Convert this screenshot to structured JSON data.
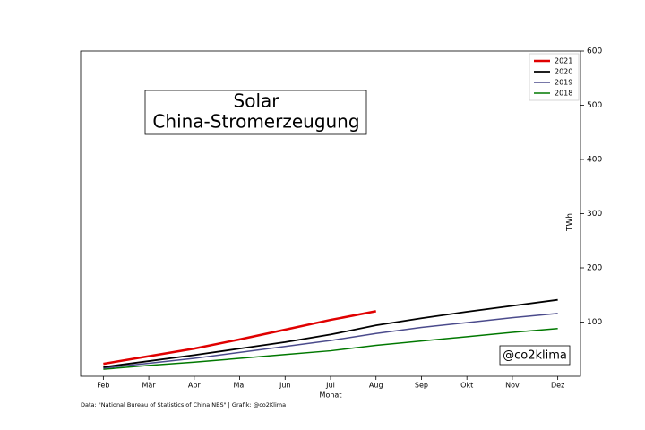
{
  "chart_data": {
    "type": "line",
    "title": "Solar",
    "subtitle": "China-Stromerzeugung",
    "xlabel": "Monat",
    "ylabel": "TWh",
    "annotation": "@co2klima",
    "source": "Data: \"National Bureau of Statistics of China NBS\" | Grafik: @co2Klima",
    "categories": [
      "Feb",
      "Mär",
      "Apr",
      "Mai",
      "Jun",
      "Jul",
      "Aug",
      "Sep",
      "Okt",
      "Nov",
      "Dez"
    ],
    "series": [
      {
        "name": "2021",
        "color": "#e00000",
        "linewidth": 2.5,
        "values": [
          23,
          37,
          51,
          68,
          86,
          104,
          120,
          null,
          null,
          null,
          null
        ]
      },
      {
        "name": "2020",
        "color": "#000000",
        "linewidth": 1.8,
        "values": [
          17,
          28,
          39,
          51,
          63,
          77,
          94,
          107,
          119,
          130,
          141
        ]
      },
      {
        "name": "2019",
        "color": "#4b4b8c",
        "linewidth": 1.5,
        "values": [
          15,
          24,
          33,
          44,
          55,
          66,
          79,
          90,
          99,
          108,
          116
        ]
      },
      {
        "name": "2018",
        "color": "#007800",
        "linewidth": 1.5,
        "values": [
          13,
          20,
          26,
          33,
          40,
          47,
          57,
          65,
          73,
          81,
          88
        ]
      }
    ],
    "ylim": [
      0,
      600
    ],
    "yticks": [
      100,
      200,
      300,
      400,
      500,
      600
    ],
    "legend": "upper right"
  }
}
